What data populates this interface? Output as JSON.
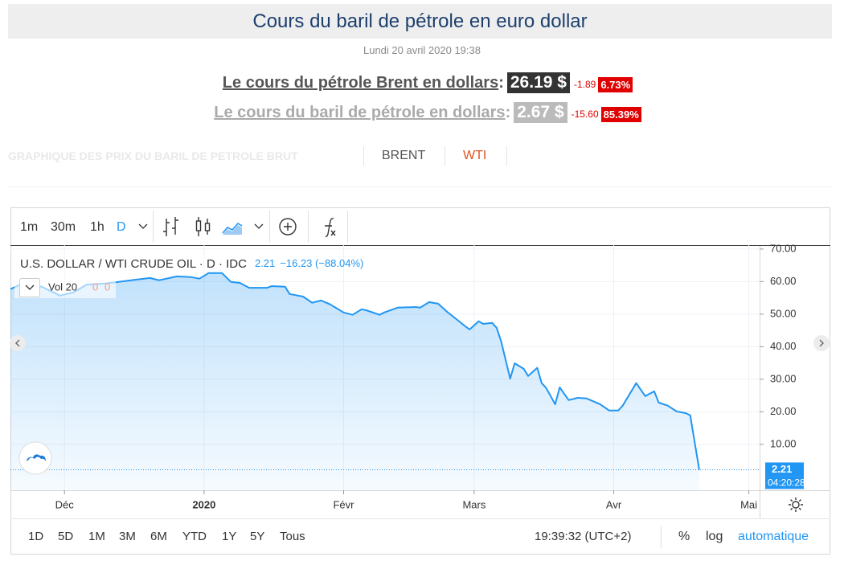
{
  "header": {
    "title": "Cours du baril de pétrole en euro dollar",
    "date": "Lundi 20 avril 2020 19:38"
  },
  "quotes": [
    {
      "label": "Le cours du pétrole Brent en dollars",
      "punctuation": ":",
      "price": "26.19 $",
      "change": "-1.89",
      "percent": "6.73%"
    },
    {
      "label": "Le cours du baril de pétrole en dollars",
      "punctuation": ":",
      "price": "2.67 $",
      "change": "-15.60",
      "percent": "85.39%"
    }
  ],
  "tabs": {
    "heading": "GRAPHIQUE DES PRIX DU BARIL DE PETROLE BRUT",
    "items": [
      "BRENT",
      "WTI"
    ]
  },
  "toolbar": {
    "intervals": [
      "1m",
      "30m",
      "1h",
      "D"
    ]
  },
  "chart_data": {
    "type": "area",
    "title": "U.S. DOLLAR / WTI CRUDE OIL · D · IDC",
    "legend_last": "2.21",
    "legend_change": "−16.23 (−88.04%)",
    "volume": {
      "label": "Vol 20",
      "values": [
        0,
        0
      ]
    },
    "color": "#2196f3",
    "x": [
      0,
      3,
      7,
      11,
      14,
      17,
      21,
      24,
      28,
      31,
      33,
      37,
      40,
      42,
      44,
      47,
      49,
      51,
      53,
      57,
      58,
      61,
      62,
      65,
      67,
      69,
      71,
      74,
      76,
      78,
      79,
      82,
      83,
      86,
      90,
      91,
      93,
      95,
      97,
      99,
      101,
      102,
      104,
      105,
      107,
      108,
      109,
      111,
      112,
      114,
      115,
      117,
      118,
      119,
      121,
      122,
      124,
      126,
      128,
      131,
      133,
      135,
      136,
      139,
      141,
      143,
      144,
      146,
      148,
      150,
      151,
      153
    ],
    "values": [
      57.7,
      59.6,
      58.4,
      55.7,
      56.7,
      59.1,
      59.4,
      59.9,
      60.6,
      61.1,
      60.4,
      61.6,
      61.4,
      60.9,
      62.6,
      62.6,
      59.9,
      59.6,
      58.1,
      58.1,
      58.6,
      58.4,
      56.2,
      55.4,
      53.5,
      54.2,
      53.0,
      50.5,
      49.8,
      51.5,
      51.2,
      49.8,
      50.5,
      52.0,
      52.2,
      52.0,
      53.7,
      53.2,
      50.7,
      48.5,
      46.3,
      45.3,
      47.8,
      47.0,
      47.3,
      45.8,
      41.6,
      30.2,
      34.9,
      33.2,
      31.0,
      33.5,
      28.8,
      27.3,
      22.3,
      27.5,
      23.6,
      24.3,
      24.1,
      22.3,
      20.4,
      20.4,
      21.9,
      28.8,
      24.8,
      26.3,
      22.8,
      21.9,
      20.1,
      19.6,
      18.9,
      2.21
    ],
    "xlim": [
      0,
      166.4
    ],
    "xticks": [
      {
        "value": 12,
        "label": "Déc"
      },
      {
        "value": 43,
        "label": "2020"
      },
      {
        "value": 74,
        "label": "Févr"
      },
      {
        "value": 103,
        "label": "Mars"
      },
      {
        "value": 134,
        "label": "Avr"
      },
      {
        "value": 164,
        "label": "Mai"
      }
    ],
    "ylim": [
      -4.1,
      71.2
    ],
    "yticks": [
      {
        "value": 10,
        "label": "10.00"
      },
      {
        "value": 20,
        "label": "20.00"
      },
      {
        "value": 30,
        "label": "30.00"
      },
      {
        "value": 40,
        "label": "40.00"
      },
      {
        "value": 50,
        "label": "50.00"
      },
      {
        "value": 60,
        "label": "60.00"
      },
      {
        "value": 70,
        "label": "70.00"
      }
    ],
    "grid": true,
    "last_price": {
      "value": 2.21,
      "label": "2.21",
      "time": "04:20:28"
    }
  },
  "footer": {
    "ranges": [
      "1D",
      "5D",
      "1M",
      "3M",
      "6M",
      "YTD",
      "1Y",
      "5Y",
      "Tous"
    ],
    "time": "19:39:32 (UTC+2)",
    "options": [
      "%",
      "log",
      "automatique"
    ]
  }
}
